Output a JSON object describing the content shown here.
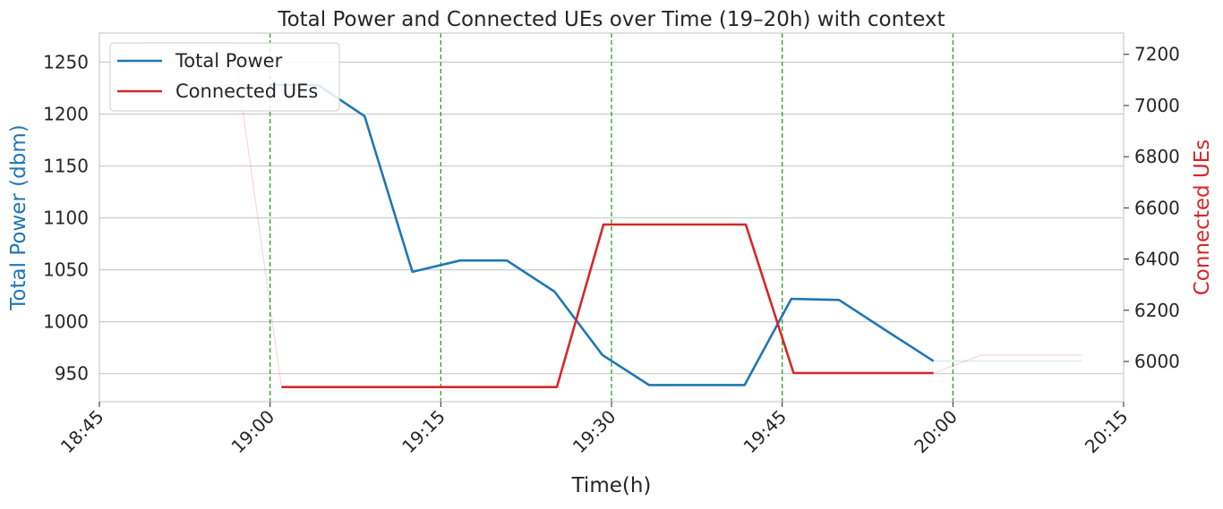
{
  "chart_data": {
    "type": "line",
    "title": "Total Power and Connected UEs over Time (19–20h) with context",
    "xlabel": "Time(h)",
    "ylabel_left": "Total Power (dbm)",
    "ylabel_right": "Connected UEs",
    "x_range_minutes": [
      0,
      90
    ],
    "x_ticks": [
      {
        "t": 0,
        "label": "18:45"
      },
      {
        "t": 15,
        "label": "19:00"
      },
      {
        "t": 30,
        "label": "19:15"
      },
      {
        "t": 45,
        "label": "19:30"
      },
      {
        "t": 60,
        "label": "19:45"
      },
      {
        "t": 75,
        "label": "20:00"
      },
      {
        "t": 90,
        "label": "20:15"
      }
    ],
    "ylim_left": [
      923,
      1278
    ],
    "ylim_right": [
      5843,
      7283
    ],
    "yticks_left": [
      "950",
      "1000",
      "1050",
      "1100",
      "1150",
      "1200",
      "1250"
    ],
    "yticks_left_values": [
      950,
      1000,
      1050,
      1100,
      1150,
      1200,
      1250
    ],
    "yticks_right": [
      "6000",
      "6200",
      "6400",
      "6600",
      "6800",
      "7000",
      "7200"
    ],
    "yticks_right_values": [
      6000,
      6200,
      6400,
      6600,
      6800,
      7000,
      7200
    ],
    "vlines_minutes": [
      15,
      30,
      45,
      60,
      75
    ],
    "vline_color": "#2ca02c",
    "legend_position": "upper-left",
    "series": [
      {
        "name": "Total Power",
        "axis": "left",
        "color": "#1f77b4",
        "x": [
          15,
          19.2,
          23.3,
          27.5,
          31.7,
          35.8,
          40,
          44.2,
          48.3,
          52.5,
          56.7,
          60.8,
          65,
          69.2,
          73.3
        ],
        "y": [
          1228,
          1228,
          1198,
          1048,
          1059,
          1059,
          1029,
          968,
          939,
          939,
          939,
          1022,
          1021,
          991,
          962
        ]
      },
      {
        "name": "Connected UEs",
        "axis": "right",
        "color": "#d62728",
        "x": [
          16,
          20,
          24,
          28,
          32,
          36,
          40.2,
          44.3,
          48.5,
          52.7,
          56.8,
          61,
          65,
          69,
          73.3
        ],
        "y": [
          5900,
          5900,
          5900,
          5900,
          5900,
          5900,
          5900,
          6535,
          6535,
          6535,
          6535,
          5955,
          5955,
          5955,
          5955
        ]
      }
    ],
    "context_series": [
      {
        "axis": "left",
        "color": "#1f77b4",
        "x": [
          3.5,
          15
        ],
        "y": [
          1228,
          1228
        ]
      },
      {
        "axis": "left",
        "color": "#1f77b4",
        "x": [
          73.3,
          86.3
        ],
        "y": [
          962,
          962
        ]
      },
      {
        "axis": "right",
        "color": "#d62728",
        "x": [
          3.5,
          11.8,
          16
        ],
        "y": [
          7235,
          7235,
          5900
        ]
      },
      {
        "axis": "right",
        "color": "#d62728",
        "x": [
          73.3,
          77.5,
          86.3
        ],
        "y": [
          5955,
          6025,
          6025
        ]
      }
    ]
  }
}
